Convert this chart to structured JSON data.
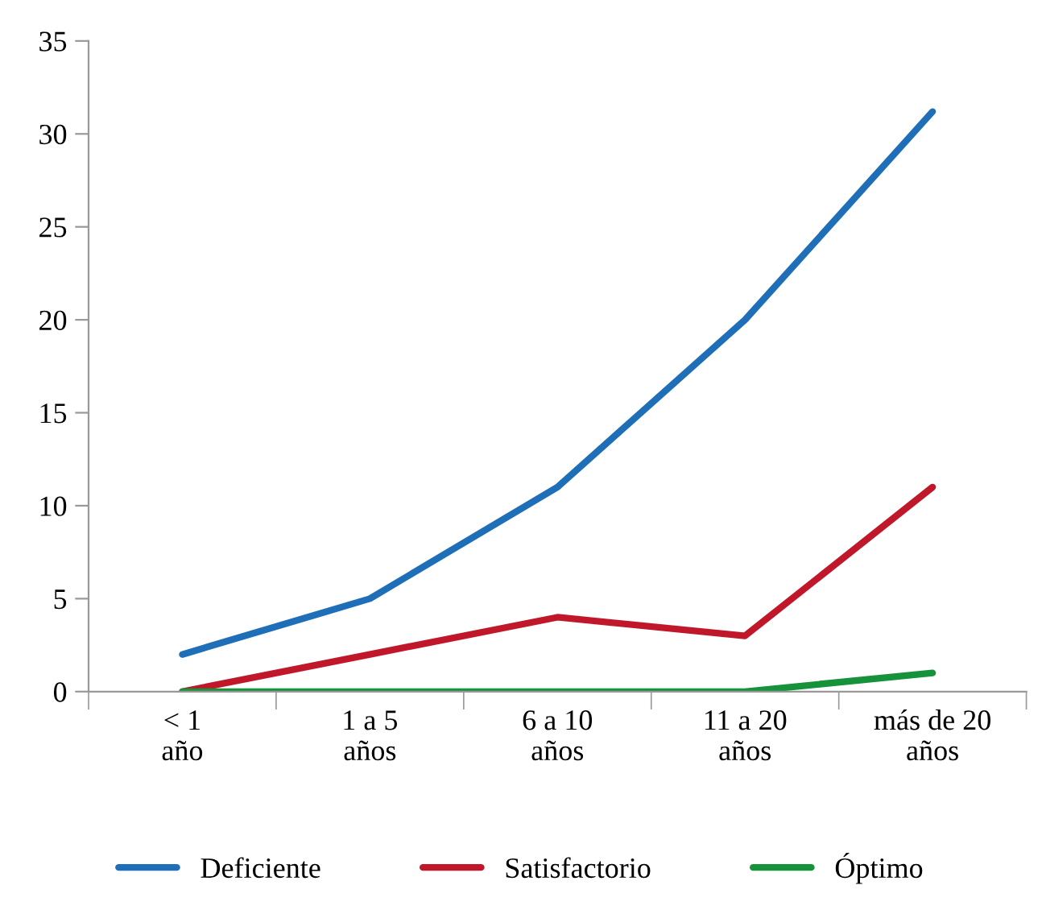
{
  "chart_data": {
    "type": "line",
    "categories": [
      "< 1\naño",
      "1 a 5\naños",
      "6 a 10\naños",
      "11 a 20\naños",
      "más de 20\naños"
    ],
    "series": [
      {
        "name": "Deficiente",
        "color": "#1f6fb8",
        "values": [
          2,
          5,
          11,
          20,
          31.2
        ]
      },
      {
        "name": "Satisfactorio",
        "color": "#c0182a",
        "values": [
          0,
          2,
          4,
          3,
          11
        ]
      },
      {
        "name": "Óptimo",
        "color": "#16923a",
        "values": [
          0,
          0,
          0,
          0,
          1
        ]
      }
    ],
    "ylim": [
      0,
      35
    ],
    "yticks": [
      0,
      5,
      10,
      15,
      20,
      25,
      30,
      35
    ],
    "grid": false,
    "legend": "bottom",
    "marker": "none",
    "line_style": "solid"
  }
}
